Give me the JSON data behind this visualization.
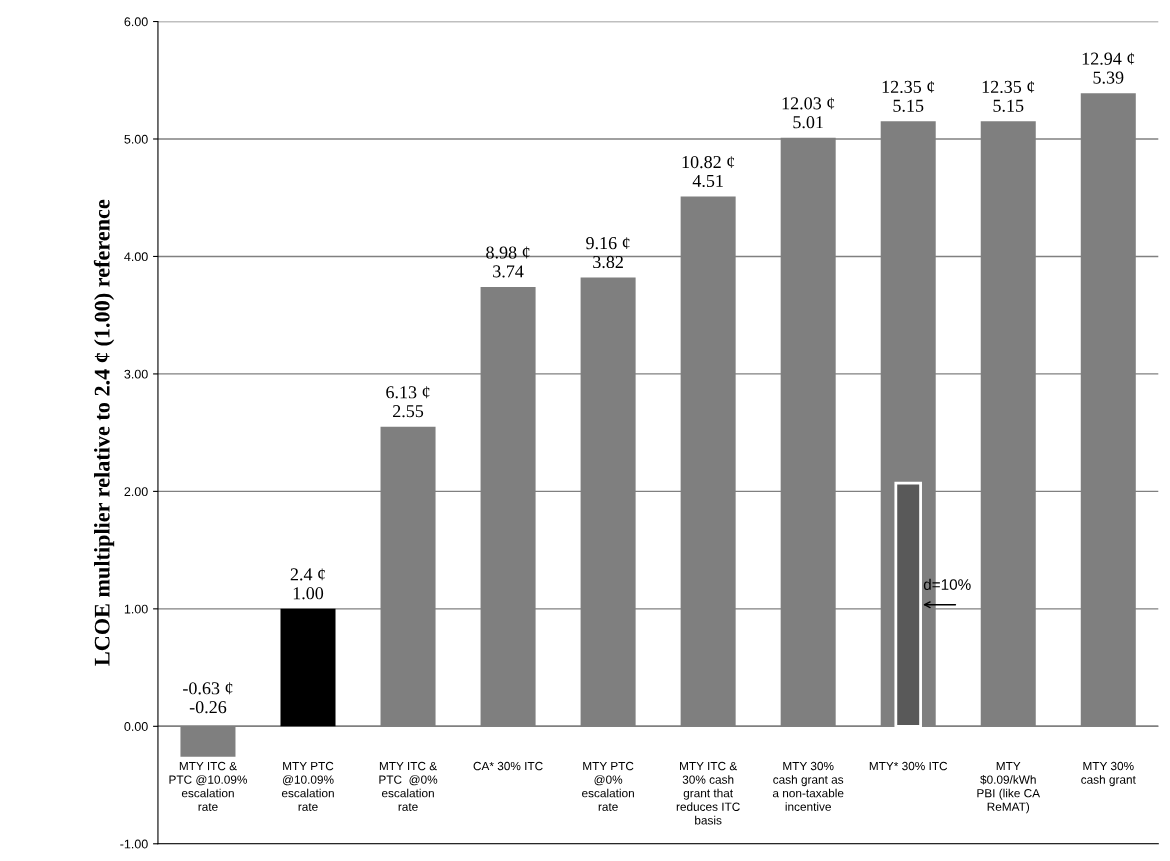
{
  "chart_data": {
    "type": "bar",
    "ylabel": "LCOE multiplier relative to 2.4 ¢ (1.00) reference",
    "categories": [
      "MTY ITC &\nPTC @10.09%\nescalation\nrate",
      "MTY PTC\n@10.09%\nescalation\nrate",
      "MTY ITC &\nPTC  @0%\nescalation\nrate",
      "CA* 30% ITC",
      "MTY PTC\n@0%\nescalation\nrate",
      "MTY ITC &\n30% cash\ngrant that\nreduces ITC\nbasis",
      "MTY 30%\ncash grant as\na non-taxable\nincentive",
      "MTY* 30% ITC",
      "MTY\n$0.09/kWh\nPBI (like CA\nReMAT)",
      "MTY 30%\ncash grant"
    ],
    "series": [
      {
        "colors": [
          "#7f7f7f",
          "#000000",
          "#7f7f7f",
          "#7f7f7f",
          "#7f7f7f",
          "#7f7f7f",
          "#7f7f7f",
          "#7f7f7f",
          "#7f7f7f",
          "#7f7f7f"
        ],
        "values": [
          -0.26,
          1.0,
          2.55,
          3.74,
          3.82,
          4.51,
          5.01,
          5.15,
          5.15,
          5.39
        ],
        "value_labels": [
          "-0.63 ¢\n-0.26",
          "2.4 ¢\n1.00",
          "6.13 ¢\n2.55",
          "8.98 ¢\n3.74",
          "9.16 ¢\n3.82",
          "10.82 ¢\n4.51",
          "12.03 ¢\n5.01",
          "12.35 ¢\n5.15",
          "12.35 ¢\n5.15",
          "12.94 ¢\n5.39"
        ]
      },
      {
        "color": "#595959",
        "values": [
          null,
          null,
          null,
          null,
          null,
          null,
          null,
          2.07,
          null,
          null
        ]
      }
    ],
    "annotations": [
      "d=10%"
    ],
    "ylim": [
      -1,
      6
    ],
    "yticks": [
      {
        "value": -1,
        "label": "-1.00"
      },
      {
        "value": 0,
        "label": "0.00"
      },
      {
        "value": 1,
        "label": "1.00"
      },
      {
        "value": 2,
        "label": "2.00"
      },
      {
        "value": 3,
        "label": "3.00"
      },
      {
        "value": 4,
        "label": "4.00"
      },
      {
        "value": 5,
        "label": "5.00"
      },
      {
        "value": 6,
        "label": "6.00"
      }
    ],
    "grid": "y",
    "legend": false
  }
}
